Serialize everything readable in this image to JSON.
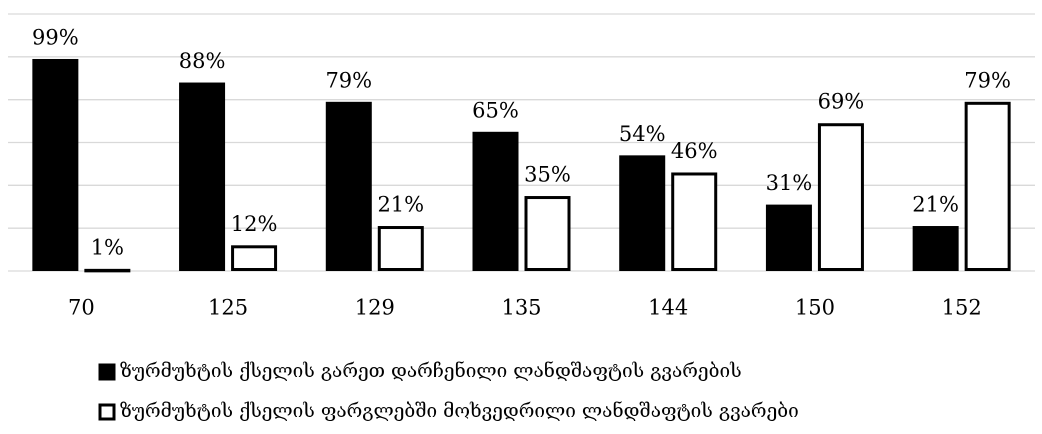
{
  "chart_data": {
    "type": "bar",
    "categories": [
      "70",
      "125",
      "129",
      "135",
      "144",
      "150",
      "152"
    ],
    "series": [
      {
        "name": "ზურმუხტის ქსელის გარეთ დარჩენილი ლანდშაფტის გვარების",
        "color": "#000000",
        "edgecolor": "#000000",
        "values": [
          99,
          88,
          79,
          65,
          54,
          31,
          21
        ],
        "value_labels": [
          "99%",
          "88%",
          "79%",
          "65%",
          "54%",
          "31%",
          "21%"
        ]
      },
      {
        "name": "ზურმუხტის ქსელის ფარგლებში მოხვედრილი ლანდშაფტის გვარები",
        "color": "#ffffff",
        "edgecolor": "#000000",
        "values": [
          1,
          12,
          21,
          35,
          46,
          69,
          79
        ],
        "value_labels": [
          "1%",
          "12%",
          "21%",
          "35%",
          "46%",
          "69%",
          "79%"
        ]
      }
    ],
    "ylim": [
      0,
      120
    ],
    "yticks": [
      0,
      20,
      40,
      60,
      80,
      100,
      120
    ],
    "grid": true,
    "legend": "bottom"
  }
}
